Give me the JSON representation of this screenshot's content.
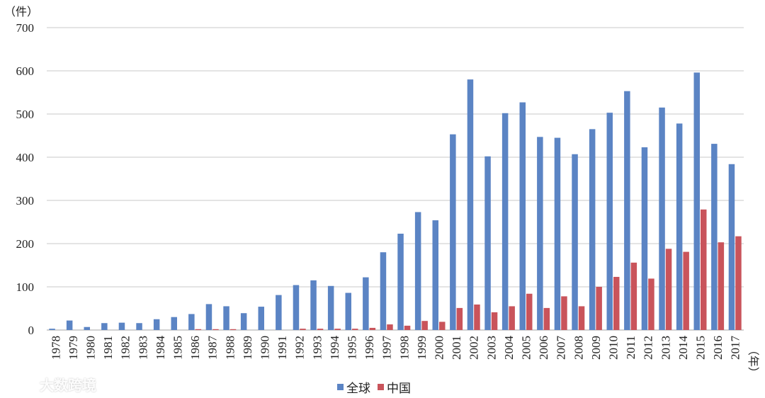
{
  "chart_data": {
    "type": "bar",
    "y_unit": "（件）",
    "x_unit": "（年）",
    "ylim": [
      0,
      700
    ],
    "yticks": [
      0,
      100,
      200,
      300,
      400,
      500,
      600,
      700
    ],
    "grid": true,
    "legend_position": "bottom",
    "categories": [
      "1978",
      "1979",
      "1980",
      "1981",
      "1982",
      "1983",
      "1984",
      "1985",
      "1986",
      "1987",
      "1988",
      "1989",
      "1990",
      "1991",
      "1992",
      "1993",
      "1994",
      "1995",
      "1996",
      "1997",
      "1998",
      "1999",
      "2000",
      "2001",
      "2002",
      "2003",
      "2004",
      "2005",
      "2006",
      "2007",
      "2008",
      "2009",
      "2010",
      "2011",
      "2012",
      "2013",
      "2014",
      "2015",
      "2016",
      "2017"
    ],
    "series": [
      {
        "name": "全球",
        "color": "#5b84c4",
        "values": [
          3,
          22,
          7,
          16,
          17,
          16,
          25,
          30,
          37,
          60,
          55,
          39,
          54,
          81,
          104,
          115,
          102,
          86,
          122,
          180,
          223,
          273,
          254,
          453,
          580,
          402,
          502,
          527,
          447,
          445,
          407,
          465,
          503,
          553,
          423,
          515,
          478,
          596,
          431,
          384
        ]
      },
      {
        "name": "中国",
        "color": "#c9545b",
        "values": [
          0,
          0,
          0,
          0,
          0,
          0,
          0,
          0,
          2,
          2,
          2,
          0,
          0,
          0,
          3,
          3,
          3,
          3,
          5,
          13,
          10,
          21,
          19,
          51,
          59,
          41,
          55,
          84,
          51,
          78,
          55,
          100,
          123,
          156,
          119,
          188,
          181,
          279,
          203,
          217
        ]
      }
    ]
  },
  "watermark": {
    "text": "大数跨境"
  }
}
